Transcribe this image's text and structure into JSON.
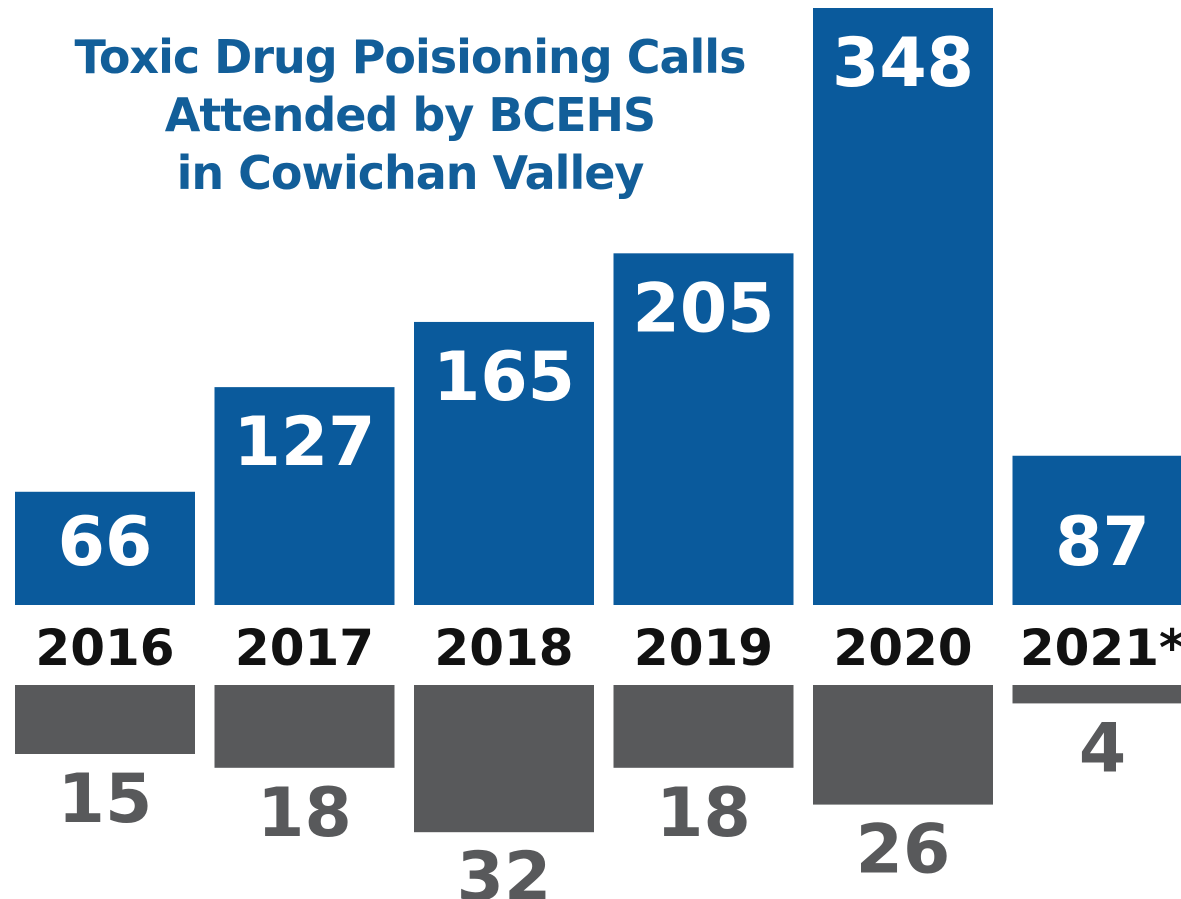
{
  "chart_data": {
    "type": "bar",
    "title": [
      "Toxic Drug Poisioning Calls",
      "Attended by BCEHS",
      "in Cowichan Valley"
    ],
    "categories": [
      "2016",
      "2017",
      "2018",
      "2019",
      "2020",
      "2021*"
    ],
    "series": [
      {
        "values": [
          66,
          127,
          165,
          205,
          348,
          87
        ],
        "color": "#0a5a9c"
      },
      {
        "values": [
          15,
          18,
          32,
          18,
          26,
          4
        ],
        "color": "#58595b"
      }
    ],
    "axis_label_color": "#111111",
    "grid": false
  }
}
